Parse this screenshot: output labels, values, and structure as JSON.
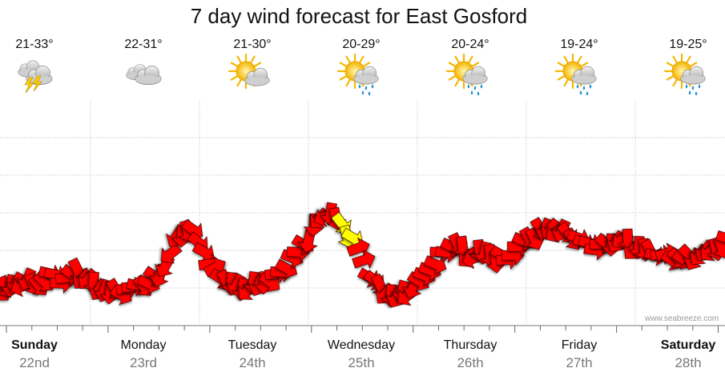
{
  "chart_data": {
    "type": "line",
    "title": "7 day wind forecast for East Gosford",
    "days": [
      {
        "name": "Sunday",
        "date": "22nd",
        "temp": "21-33°",
        "icon": "thunderstorm-icon",
        "bold": true
      },
      {
        "name": "Monday",
        "date": "23rd",
        "temp": "22-31°",
        "icon": "cloudy-icon",
        "bold": false
      },
      {
        "name": "Tuesday",
        "date": "24th",
        "temp": "21-30°",
        "icon": "partly-cloudy-icon",
        "bold": false
      },
      {
        "name": "Wednesday",
        "date": "25th",
        "temp": "20-29°",
        "icon": "sun-showers-icon",
        "bold": false
      },
      {
        "name": "Thursday",
        "date": "26th",
        "temp": "20-24°",
        "icon": "sun-showers-icon",
        "bold": false
      },
      {
        "name": "Friday",
        "date": "27th",
        "temp": "19-24°",
        "icon": "sun-showers-icon",
        "bold": false
      },
      {
        "name": "Saturday",
        "date": "28th",
        "temp": "19-25°",
        "icon": "sun-showers-icon",
        "bold": true
      }
    ],
    "x_unit": "hours since start of Sunday",
    "series": [
      {
        "points": [
          {
            "t": 0,
            "v": 4
          },
          {
            "t": 3,
            "v": 4.5
          },
          {
            "t": 6,
            "v": 5
          },
          {
            "t": 9,
            "v": 4.5
          },
          {
            "t": 12,
            "v": 6
          },
          {
            "t": 15,
            "v": 5
          },
          {
            "t": 18,
            "v": 6.5
          },
          {
            "t": 21,
            "v": 5
          },
          {
            "t": 24,
            "v": 4
          },
          {
            "t": 27,
            "v": 3.5
          },
          {
            "t": 30,
            "v": 4
          },
          {
            "t": 33,
            "v": 4.5
          },
          {
            "t": 36,
            "v": 5
          },
          {
            "t": 39,
            "v": 7
          },
          {
            "t": 42,
            "v": 11
          },
          {
            "t": 45,
            "v": 12
          },
          {
            "t": 48,
            "v": 9
          },
          {
            "t": 51,
            "v": 6
          },
          {
            "t": 54,
            "v": 5
          },
          {
            "t": 57,
            "v": 4
          },
          {
            "t": 60,
            "v": 4.5
          },
          {
            "t": 63,
            "v": 5
          },
          {
            "t": 66,
            "v": 6
          },
          {
            "t": 69,
            "v": 8
          },
          {
            "t": 72,
            "v": 10
          },
          {
            "t": 75,
            "v": 13
          },
          {
            "t": 78,
            "v": 14
          },
          {
            "t": 81,
            "v": 12
          },
          {
            "t": 84,
            "v": 10
          },
          {
            "t": 87,
            "v": 6
          },
          {
            "t": 90,
            "v": 4
          },
          {
            "t": 93,
            "v": 3
          },
          {
            "t": 96,
            "v": 3.5
          },
          {
            "t": 99,
            "v": 5
          },
          {
            "t": 102,
            "v": 7
          },
          {
            "t": 105,
            "v": 9
          },
          {
            "t": 108,
            "v": 10
          },
          {
            "t": 111,
            "v": 8
          },
          {
            "t": 114,
            "v": 9
          },
          {
            "t": 117,
            "v": 8
          },
          {
            "t": 120,
            "v": 8
          },
          {
            "t": 123,
            "v": 10
          },
          {
            "t": 126,
            "v": 11
          },
          {
            "t": 129,
            "v": 12
          },
          {
            "t": 132,
            "v": 11.5
          },
          {
            "t": 135,
            "v": 11
          },
          {
            "t": 138,
            "v": 10
          },
          {
            "t": 141,
            "v": 9.5
          },
          {
            "t": 144,
            "v": 10
          },
          {
            "t": 147,
            "v": 10.5
          },
          {
            "t": 150,
            "v": 9.5
          },
          {
            "t": 153,
            "v": 9
          },
          {
            "t": 156,
            "v": 8.5
          },
          {
            "t": 159,
            "v": 8
          },
          {
            "t": 162,
            "v": 8
          },
          {
            "t": 165,
            "v": 8.5
          },
          {
            "t": 168,
            "v": 9
          },
          {
            "t": 171,
            "v": 10
          },
          {
            "t": 174,
            "v": 10.5
          },
          {
            "t": 177,
            "v": 11
          },
          {
            "t": 180,
            "v": 11
          }
        ],
        "color": "#ff0000",
        "highlight": {
          "t_from": 80,
          "t_to": 84,
          "color": "#ffff00"
        }
      }
    ],
    "xlim": [
      0,
      180
    ],
    "ylim": [
      0,
      25
    ],
    "grid": true,
    "watermark": "www.seabreeze.com"
  }
}
